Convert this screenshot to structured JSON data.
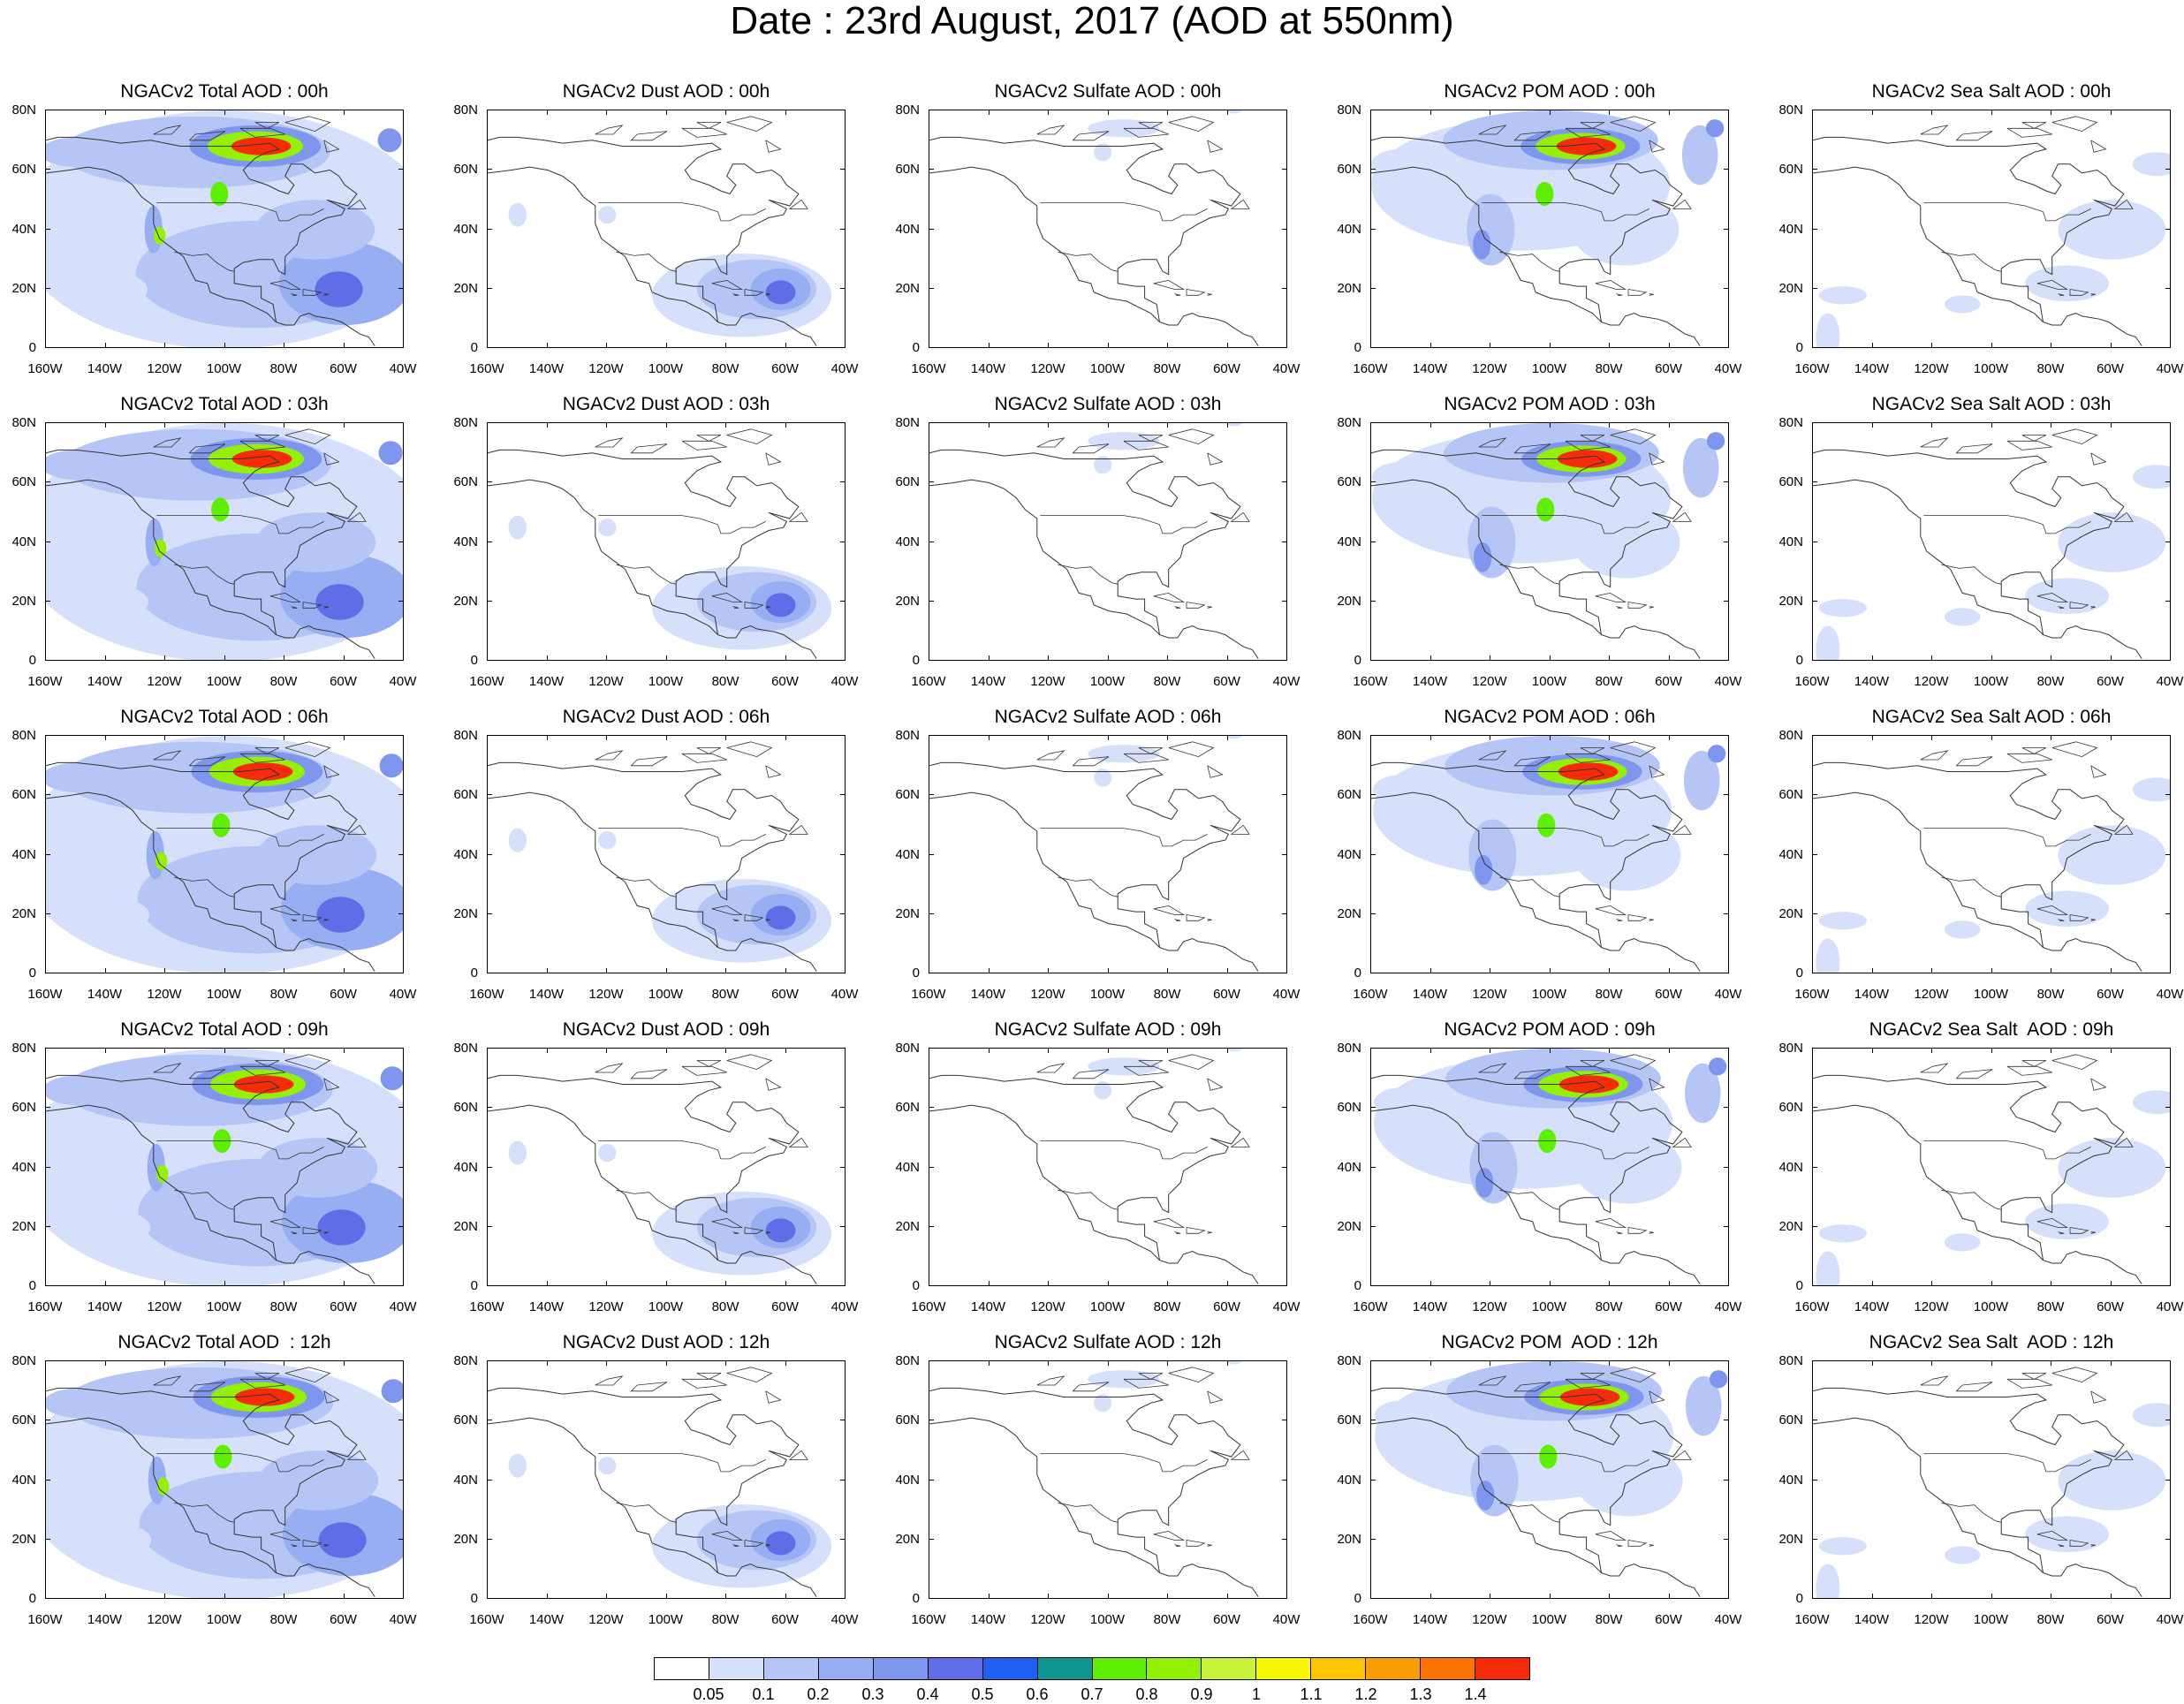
{
  "title": "Date : 23rd August, 2017 (AOD at 550nm)",
  "axes": {
    "y_ticks": [
      "80N",
      "60N",
      "40N",
      "20N",
      "0"
    ],
    "x_ticks": [
      "160W",
      "140W",
      "120W",
      "100W",
      "80W",
      "60W",
      "40W"
    ]
  },
  "panels": [
    [
      "NGACv2 Total AOD : 00h",
      "NGACv2 Dust AOD : 00h",
      "NGACv2 Sulfate AOD : 00h",
      "NGACv2 POM AOD : 00h",
      "NGACv2 Sea Salt AOD : 00h"
    ],
    [
      "NGACv2 Total AOD : 03h",
      "NGACv2 Dust AOD : 03h",
      "NGACv2 Sulfate AOD : 03h",
      "NGACv2 POM AOD : 03h",
      "NGACv2 Sea Salt AOD : 03h"
    ],
    [
      "NGACv2 Total AOD : 06h",
      "NGACv2 Dust AOD : 06h",
      "NGACv2 Sulfate AOD : 06h",
      "NGACv2 POM AOD : 06h",
      "NGACv2 Sea Salt AOD : 06h"
    ],
    [
      "NGACv2 Total AOD : 09h",
      "NGACv2 Dust AOD : 09h",
      "NGACv2 Sulfate AOD : 09h",
      "NGACv2 POM AOD : 09h",
      "NGACv2 Sea Salt  AOD : 09h"
    ],
    [
      "NGACv2 Total AOD  : 12h",
      "NGACv2 Dust AOD : 12h",
      "NGACv2 Sulfate AOD : 12h",
      "NGACv2 POM  AOD : 12h",
      "NGACv2 Sea Salt  AOD : 12h"
    ]
  ],
  "colorbar": {
    "labels": [
      "0.05",
      "0.1",
      "0.2",
      "0.3",
      "0.4",
      "0.5",
      "0.6",
      "0.7",
      "0.8",
      "0.9",
      "1",
      "1.1",
      "1.2",
      "1.3",
      "1.4"
    ],
    "colors": [
      "#ffffff",
      "#d6e0fb",
      "#b5c6f6",
      "#97aff2",
      "#7f96ee",
      "#5f6ee6",
      "#1f5ff4",
      "#0f9690",
      "#5ef000",
      "#93f006",
      "#c9f33a",
      "#f8f800",
      "#fbc600",
      "#fb9c00",
      "#fb7400",
      "#f62b0a"
    ]
  }
}
